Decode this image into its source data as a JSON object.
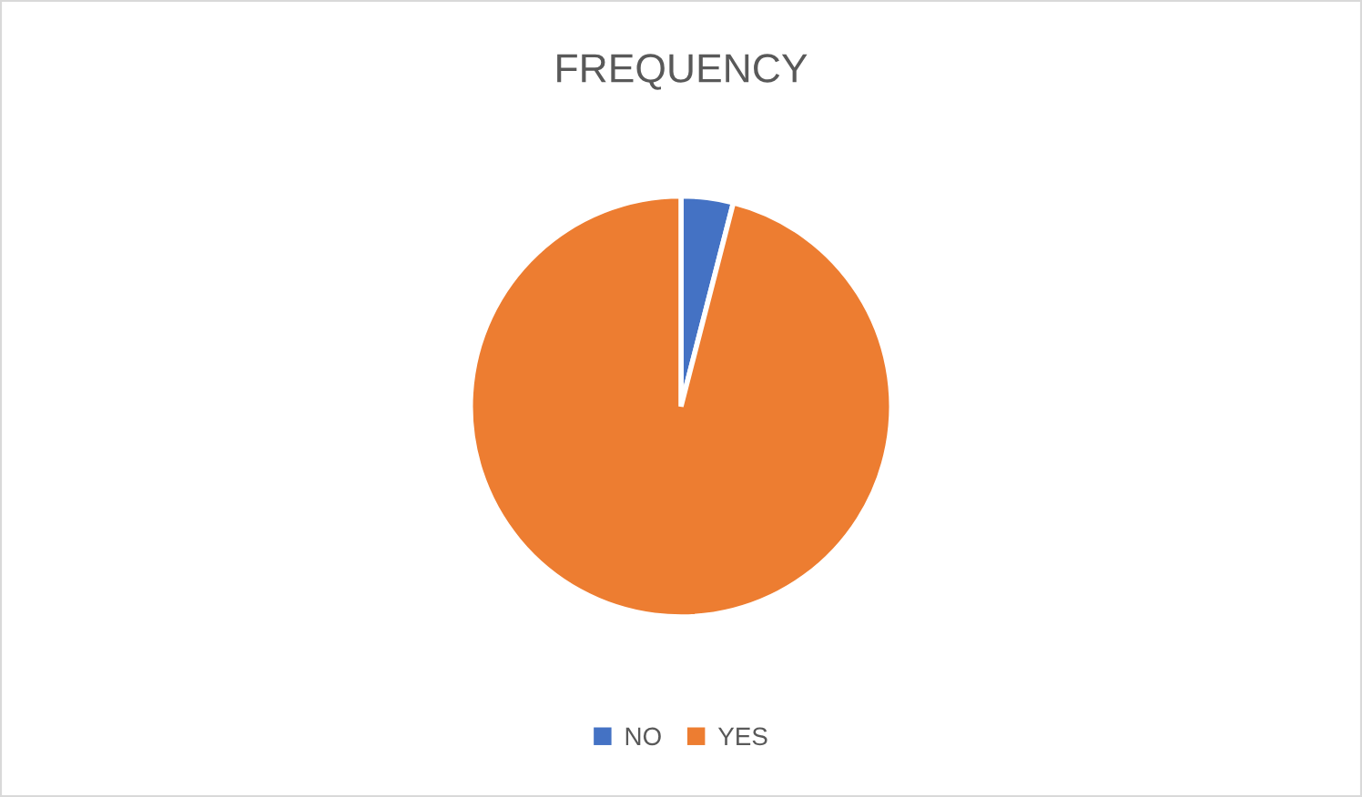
{
  "chart_data": {
    "type": "pie",
    "title": "FREQUENCY",
    "categories": [
      "NO",
      "YES"
    ],
    "values": [
      4,
      96
    ],
    "colors": [
      "#4472c4",
      "#ed7d31"
    ],
    "legend": "bottom"
  }
}
